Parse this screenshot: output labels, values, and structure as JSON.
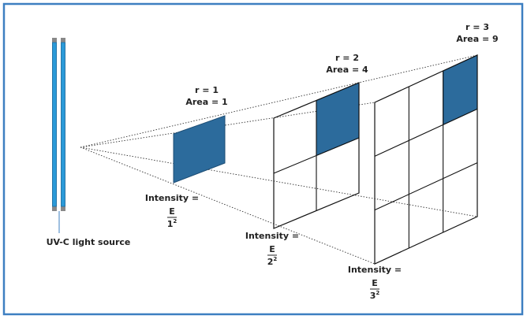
{
  "source": {
    "label": "UV-C light source"
  },
  "panels": [
    {
      "r": "r = 1",
      "area": "Area = 1",
      "intensity": "Intensity =",
      "numerator": "E",
      "denominator": {
        "base": "1",
        "exponent": "2"
      }
    },
    {
      "r": "r = 2",
      "area": "Area = 4",
      "intensity": "Intensity =",
      "numerator": "E",
      "denominator": {
        "base": "2",
        "exponent": "2"
      }
    },
    {
      "r": "r = 3",
      "area": "Area = 9",
      "intensity": "Intensity =",
      "numerator": "E",
      "denominator": {
        "base": "3",
        "exponent": "2"
      }
    }
  ]
}
